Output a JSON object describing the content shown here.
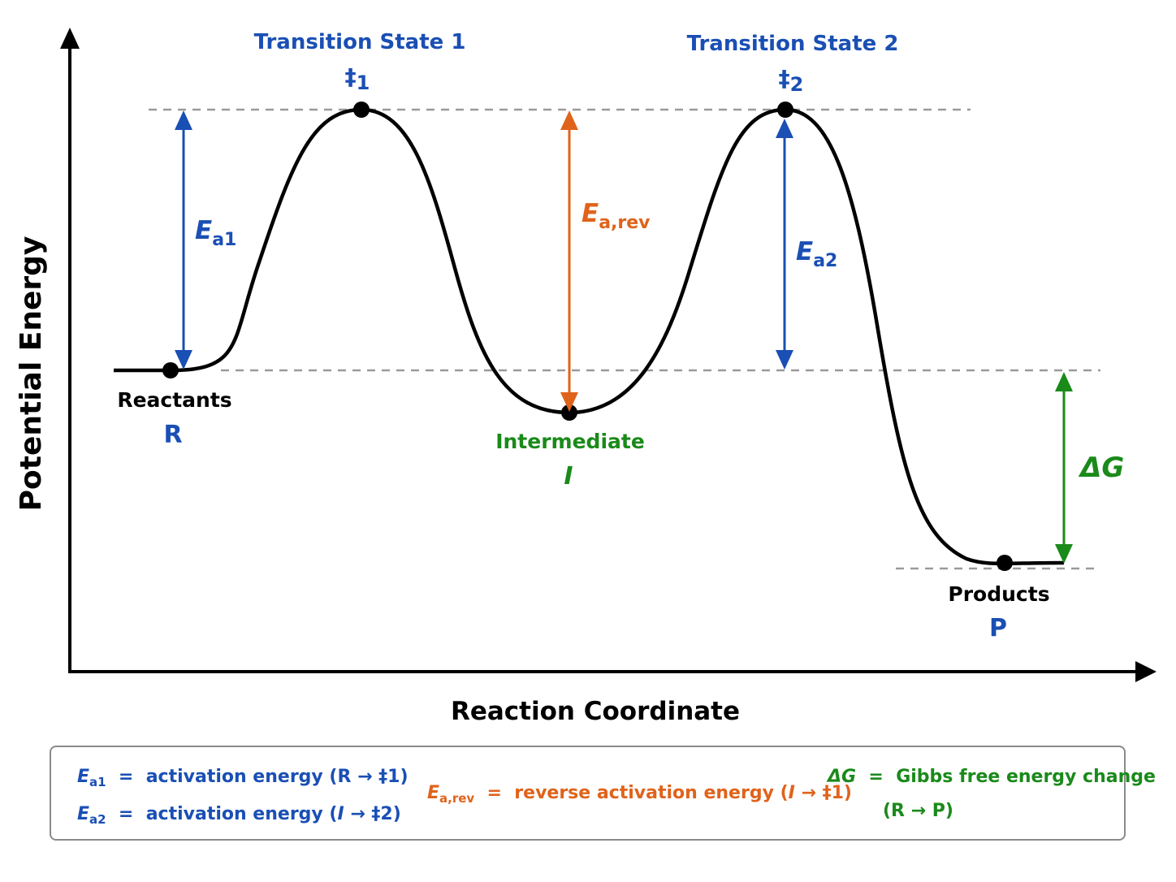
{
  "axes": {
    "y_label": "Potential Energy",
    "x_label": "Reaction Coordinate"
  },
  "states": {
    "ts1": {
      "title": "Transition State 1",
      "symbol": "‡",
      "sub": "1"
    },
    "ts2": {
      "title": "Transition State 2",
      "symbol": "‡",
      "sub": "2"
    },
    "reactants": {
      "name": "Reactants",
      "symbol": "R"
    },
    "intermediate": {
      "name": "Intermediate",
      "symbol": "I"
    },
    "products": {
      "name": "Products",
      "symbol": "P"
    }
  },
  "arrows": {
    "ea1": {
      "main": "E",
      "sub": "a1"
    },
    "ea2": {
      "main": "E",
      "sub": "a2"
    },
    "earev": {
      "main": "E",
      "sub": "a,rev"
    },
    "dg": {
      "label": "ΔG"
    }
  },
  "legend": {
    "ea1": {
      "sym": "E",
      "sub": "a1",
      "eq": "=",
      "text": "activation energy (R → ‡1)"
    },
    "ea2": {
      "sym": "E",
      "sub": "a2",
      "eq": "=",
      "text_pre": "activation energy (",
      "text_i": "I",
      "text_post": " → ‡2)"
    },
    "earev": {
      "sym": "E",
      "sub": "a,rev",
      "eq": "=",
      "text_pre": "reverse activation energy (",
      "text_i": "I",
      "text_post": " → ‡1)"
    },
    "dg": {
      "sym": "ΔG",
      "eq": "=",
      "line1": "Gibbs free energy change",
      "line2": "(R → P)"
    }
  },
  "colors": {
    "blue": "#1a4fb4",
    "orange": "#e0631b",
    "green": "#1a8a1a",
    "curve": "#000000",
    "dashed": "#9a9a9a"
  }
}
